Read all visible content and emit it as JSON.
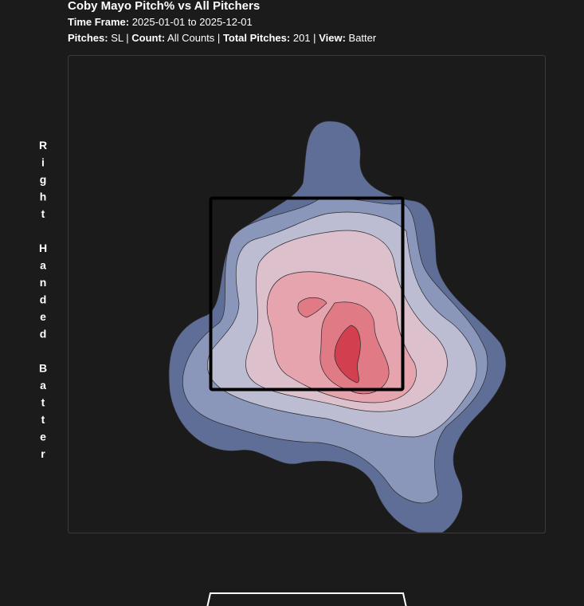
{
  "header": {
    "title": "Coby Mayo Pitch% vs All Pitchers",
    "time_frame": {
      "label": "Time Frame:",
      "value": "2025-01-01 to 2025-12-01"
    },
    "filters": [
      {
        "label": "Pitches:",
        "value": "SL"
      },
      {
        "label": "Count:",
        "value": "All Counts"
      },
      {
        "label": "Total Pitches:",
        "value": "201"
      },
      {
        "label": "View:",
        "value": "Batter"
      }
    ],
    "separator": "|"
  },
  "side_label": "Right Handed Batter"
}
